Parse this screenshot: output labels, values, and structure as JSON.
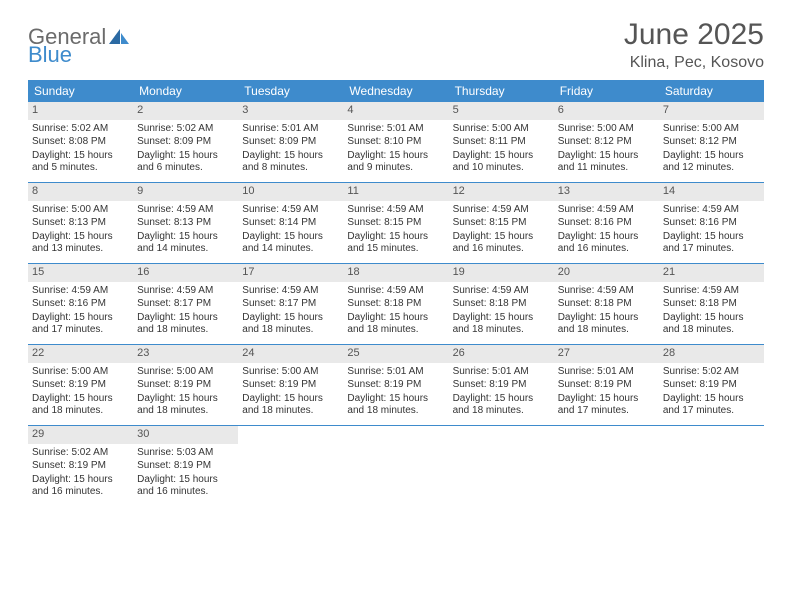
{
  "logo": {
    "text_gray": "General",
    "text_blue": "Blue"
  },
  "title": "June 2025",
  "location": "Klina, Pec, Kosovo",
  "colors": {
    "header_bg": "#3e8bcc",
    "header_text": "#ffffff",
    "daynum_bg": "#e9e9e9",
    "body_text": "#343434",
    "title_text": "#555555"
  },
  "day_headers": [
    "Sunday",
    "Monday",
    "Tuesday",
    "Wednesday",
    "Thursday",
    "Friday",
    "Saturday"
  ],
  "weeks": [
    [
      {
        "n": "1",
        "sr": "Sunrise: 5:02 AM",
        "ss": "Sunset: 8:08 PM",
        "dl": "Daylight: 15 hours and 5 minutes."
      },
      {
        "n": "2",
        "sr": "Sunrise: 5:02 AM",
        "ss": "Sunset: 8:09 PM",
        "dl": "Daylight: 15 hours and 6 minutes."
      },
      {
        "n": "3",
        "sr": "Sunrise: 5:01 AM",
        "ss": "Sunset: 8:09 PM",
        "dl": "Daylight: 15 hours and 8 minutes."
      },
      {
        "n": "4",
        "sr": "Sunrise: 5:01 AM",
        "ss": "Sunset: 8:10 PM",
        "dl": "Daylight: 15 hours and 9 minutes."
      },
      {
        "n": "5",
        "sr": "Sunrise: 5:00 AM",
        "ss": "Sunset: 8:11 PM",
        "dl": "Daylight: 15 hours and 10 minutes."
      },
      {
        "n": "6",
        "sr": "Sunrise: 5:00 AM",
        "ss": "Sunset: 8:12 PM",
        "dl": "Daylight: 15 hours and 11 minutes."
      },
      {
        "n": "7",
        "sr": "Sunrise: 5:00 AM",
        "ss": "Sunset: 8:12 PM",
        "dl": "Daylight: 15 hours and 12 minutes."
      }
    ],
    [
      {
        "n": "8",
        "sr": "Sunrise: 5:00 AM",
        "ss": "Sunset: 8:13 PM",
        "dl": "Daylight: 15 hours and 13 minutes."
      },
      {
        "n": "9",
        "sr": "Sunrise: 4:59 AM",
        "ss": "Sunset: 8:13 PM",
        "dl": "Daylight: 15 hours and 14 minutes."
      },
      {
        "n": "10",
        "sr": "Sunrise: 4:59 AM",
        "ss": "Sunset: 8:14 PM",
        "dl": "Daylight: 15 hours and 14 minutes."
      },
      {
        "n": "11",
        "sr": "Sunrise: 4:59 AM",
        "ss": "Sunset: 8:15 PM",
        "dl": "Daylight: 15 hours and 15 minutes."
      },
      {
        "n": "12",
        "sr": "Sunrise: 4:59 AM",
        "ss": "Sunset: 8:15 PM",
        "dl": "Daylight: 15 hours and 16 minutes."
      },
      {
        "n": "13",
        "sr": "Sunrise: 4:59 AM",
        "ss": "Sunset: 8:16 PM",
        "dl": "Daylight: 15 hours and 16 minutes."
      },
      {
        "n": "14",
        "sr": "Sunrise: 4:59 AM",
        "ss": "Sunset: 8:16 PM",
        "dl": "Daylight: 15 hours and 17 minutes."
      }
    ],
    [
      {
        "n": "15",
        "sr": "Sunrise: 4:59 AM",
        "ss": "Sunset: 8:16 PM",
        "dl": "Daylight: 15 hours and 17 minutes."
      },
      {
        "n": "16",
        "sr": "Sunrise: 4:59 AM",
        "ss": "Sunset: 8:17 PM",
        "dl": "Daylight: 15 hours and 18 minutes."
      },
      {
        "n": "17",
        "sr": "Sunrise: 4:59 AM",
        "ss": "Sunset: 8:17 PM",
        "dl": "Daylight: 15 hours and 18 minutes."
      },
      {
        "n": "18",
        "sr": "Sunrise: 4:59 AM",
        "ss": "Sunset: 8:18 PM",
        "dl": "Daylight: 15 hours and 18 minutes."
      },
      {
        "n": "19",
        "sr": "Sunrise: 4:59 AM",
        "ss": "Sunset: 8:18 PM",
        "dl": "Daylight: 15 hours and 18 minutes."
      },
      {
        "n": "20",
        "sr": "Sunrise: 4:59 AM",
        "ss": "Sunset: 8:18 PM",
        "dl": "Daylight: 15 hours and 18 minutes."
      },
      {
        "n": "21",
        "sr": "Sunrise: 4:59 AM",
        "ss": "Sunset: 8:18 PM",
        "dl": "Daylight: 15 hours and 18 minutes."
      }
    ],
    [
      {
        "n": "22",
        "sr": "Sunrise: 5:00 AM",
        "ss": "Sunset: 8:19 PM",
        "dl": "Daylight: 15 hours and 18 minutes."
      },
      {
        "n": "23",
        "sr": "Sunrise: 5:00 AM",
        "ss": "Sunset: 8:19 PM",
        "dl": "Daylight: 15 hours and 18 minutes."
      },
      {
        "n": "24",
        "sr": "Sunrise: 5:00 AM",
        "ss": "Sunset: 8:19 PM",
        "dl": "Daylight: 15 hours and 18 minutes."
      },
      {
        "n": "25",
        "sr": "Sunrise: 5:01 AM",
        "ss": "Sunset: 8:19 PM",
        "dl": "Daylight: 15 hours and 18 minutes."
      },
      {
        "n": "26",
        "sr": "Sunrise: 5:01 AM",
        "ss": "Sunset: 8:19 PM",
        "dl": "Daylight: 15 hours and 18 minutes."
      },
      {
        "n": "27",
        "sr": "Sunrise: 5:01 AM",
        "ss": "Sunset: 8:19 PM",
        "dl": "Daylight: 15 hours and 17 minutes."
      },
      {
        "n": "28",
        "sr": "Sunrise: 5:02 AM",
        "ss": "Sunset: 8:19 PM",
        "dl": "Daylight: 15 hours and 17 minutes."
      }
    ],
    [
      {
        "n": "29",
        "sr": "Sunrise: 5:02 AM",
        "ss": "Sunset: 8:19 PM",
        "dl": "Daylight: 15 hours and 16 minutes."
      },
      {
        "n": "30",
        "sr": "Sunrise: 5:03 AM",
        "ss": "Sunset: 8:19 PM",
        "dl": "Daylight: 15 hours and 16 minutes."
      },
      null,
      null,
      null,
      null,
      null
    ]
  ]
}
